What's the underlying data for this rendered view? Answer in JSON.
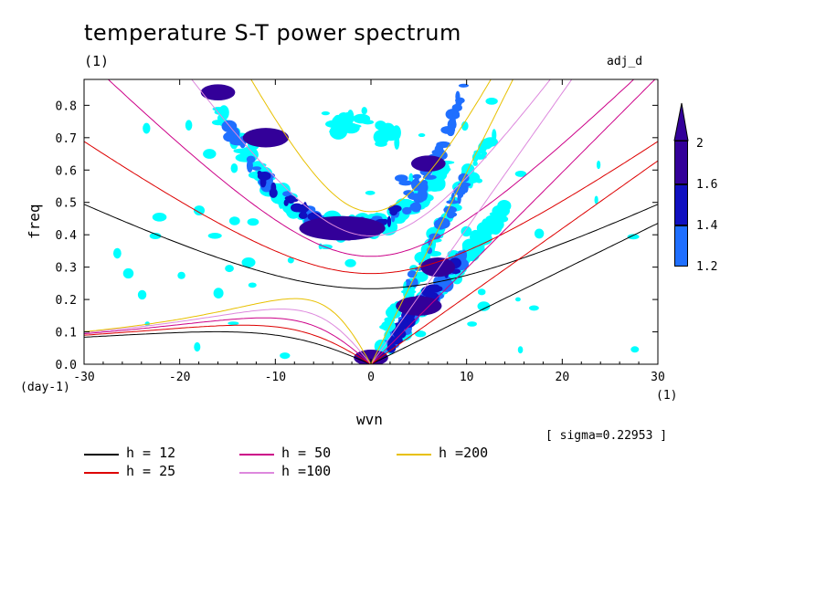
{
  "title": "temperature S-T power spectrum",
  "subtitle": "(1)",
  "variable_tag": "adj_d",
  "sigma_note": "[ sigma=0.22953 ]",
  "x_unit": "(1)",
  "y_unit": "(day-1)",
  "colors": {
    "h12": "#000000",
    "h25": "#dd0000",
    "h50": "#cc0088",
    "h100": "#dd88dd",
    "h200": "#e8c000",
    "level_1_2": "#00ffff",
    "level_1_4": "#1f6fff",
    "level_1_6": "#1010c0",
    "level_2": "#330099"
  },
  "chart_data": {
    "type": "contour",
    "xlabel": "wvn",
    "ylabel": "freq",
    "xlim": [
      -30,
      30
    ],
    "ylim": [
      0,
      0.88
    ],
    "xticks": [
      -30,
      -20,
      -10,
      0,
      10,
      20,
      30
    ],
    "yticks": [
      0.0,
      0.1,
      0.2,
      0.3,
      0.4,
      0.5,
      0.6,
      0.7,
      0.8
    ],
    "ytick_labels": [
      "0.0",
      "0.1",
      "0.2",
      "0.3",
      "0.4",
      "0.5",
      "0.6",
      "0.7",
      "0.8"
    ],
    "colorbar": {
      "levels": [
        1.2,
        1.4,
        1.6,
        2
      ],
      "labels": [
        "1.2",
        "1.4",
        "1.6",
        "2"
      ],
      "fills": [
        "#00ffff",
        "#1f6fff",
        "#1010c0",
        "#330099"
      ]
    },
    "dispersion_curves": [
      {
        "h": 12,
        "label": "h = 12"
      },
      {
        "h": 25,
        "label": "h = 25"
      },
      {
        "h": 50,
        "label": "h = 50"
      },
      {
        "h": 100,
        "label": "h =100"
      },
      {
        "h": 200,
        "label": "h =200"
      }
    ],
    "significant_regions": [
      {
        "level": 2,
        "x": -3,
        "y": 0.42,
        "dx": 1.5,
        "dy": 0.015
      },
      {
        "level": 2,
        "x": -11,
        "y": 0.7,
        "dx": 0.8,
        "dy": 0.012
      },
      {
        "level": 2,
        "x": -16,
        "y": 0.84,
        "dx": 0.6,
        "dy": 0.01
      },
      {
        "level": 2,
        "x": 0,
        "y": 0.02,
        "dx": 0.6,
        "dy": 0.01
      },
      {
        "level": 2,
        "x": 5,
        "y": 0.18,
        "dx": 0.8,
        "dy": 0.012
      },
      {
        "level": 2,
        "x": 7,
        "y": 0.3,
        "dx": 0.6,
        "dy": 0.012
      },
      {
        "level": 2,
        "x": 6,
        "y": 0.62,
        "dx": 0.6,
        "dy": 0.01
      }
    ]
  }
}
